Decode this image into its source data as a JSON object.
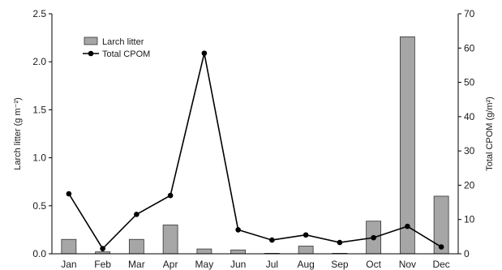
{
  "chart_data": {
    "type": "bar",
    "categories": [
      "Jan",
      "Feb",
      "Mar",
      "Apr",
      "May",
      "Jun",
      "Jul",
      "Aug",
      "Sep",
      "Oct",
      "Nov",
      "Dec"
    ],
    "series": [
      {
        "name": "Larch litter",
        "type": "bar",
        "axis": "left",
        "color": "#a6a6a6",
        "values": [
          0.15,
          0.02,
          0.15,
          0.3,
          0.05,
          0.04,
          0.005,
          0.08,
          0.005,
          0.34,
          2.26,
          0.6
        ]
      },
      {
        "name": "Total CPOM",
        "type": "line",
        "axis": "right",
        "color": "#000000",
        "values": [
          17.5,
          1.5,
          11.5,
          17,
          58.5,
          7,
          4,
          5.5,
          3.3,
          4.7,
          8,
          2
        ]
      }
    ],
    "ylabel": "Larch litter (g m⁻²)",
    "y2label": "Total CPOM (g/m²)",
    "ylim": [
      0,
      2.5
    ],
    "y2lim": [
      0,
      70
    ],
    "yticks": [
      "0.0",
      "0.5",
      "1.0",
      "1.5",
      "2.0",
      "2.5"
    ],
    "y2ticks": [
      "0",
      "10",
      "20",
      "30",
      "40",
      "50",
      "60",
      "70"
    ],
    "legend_position": "top-left",
    "grid": false
  }
}
